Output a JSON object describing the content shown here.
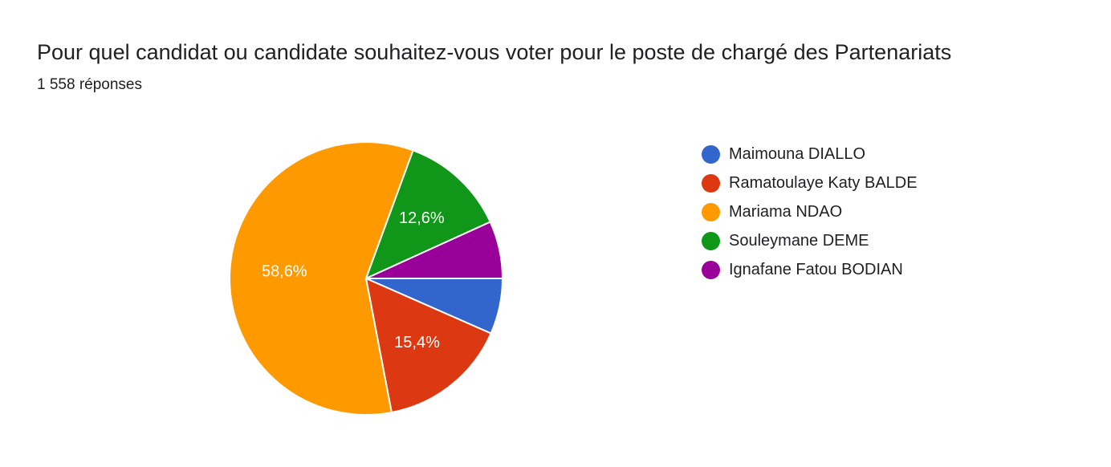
{
  "title": "Pour quel candidat ou candidate souhaitez-vous voter pour le poste de chargé des Partenariats",
  "subtitle": "1 558 réponses",
  "chart_data": {
    "type": "pie",
    "title": "Pour quel candidat ou candidate souhaitez-vous voter pour le poste de chargé des Partenariats",
    "subtitle": "1 558 réponses",
    "legend_position": "right",
    "slices": [
      {
        "label": "Maimouna DIALLO",
        "value": 6.6,
        "color": "#3366cc"
      },
      {
        "label": "Ramatoulaye Katy BALDE",
        "value": 15.4,
        "color": "#dc3912",
        "data_label": "15,4%"
      },
      {
        "label": "Mariama NDAO",
        "value": 58.6,
        "color": "#ff9900",
        "data_label": "58,6%"
      },
      {
        "label": "Souleymane DEME",
        "value": 12.6,
        "color": "#109618",
        "data_label": "12,6%"
      },
      {
        "label": "Ignafane Fatou BODIAN",
        "value": 6.8,
        "color": "#990099"
      }
    ]
  }
}
